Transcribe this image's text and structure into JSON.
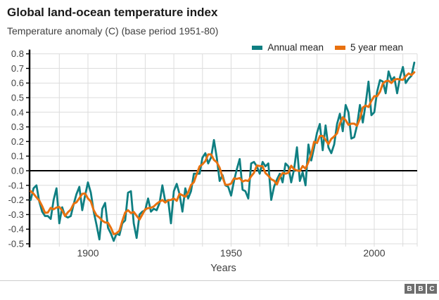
{
  "header": {
    "title": "Global land-ocean temperature index",
    "subtitle": "Temperature anomaly (C) (base period 1951-80)"
  },
  "legend": {
    "items": [
      {
        "label": "Annual mean",
        "color": "#0F7F82"
      },
      {
        "label": "5 year mean",
        "color": "#E8710F"
      }
    ]
  },
  "chart_data": {
    "type": "line",
    "title": "Global land-ocean temperature index",
    "subtitle": "Temperature anomaly (C) (base period 1951-80)",
    "xlabel": "Years",
    "ylabel": "Temperature anomaly (C)",
    "xlim": [
      1879.6,
      2015
    ],
    "ylim": [
      -0.5,
      0.8
    ],
    "grid": true,
    "legend_position": "top-right",
    "yticks": [
      "0.8",
      "0.7",
      "0.6",
      "0.5",
      "0.4",
      "0.3",
      "0.2",
      "0.1",
      "0.0",
      "-0.1",
      "-0.2",
      "-0.3",
      "-0.4",
      "-0.5"
    ],
    "xticks": [
      "1900",
      "1950",
      "2000"
    ],
    "x_start_year": 1880,
    "x_end_year": 2014,
    "series": [
      {
        "name": "Annual mean",
        "color": "#0F7F82",
        "values": [
          -0.2,
          -0.12,
          -0.1,
          -0.21,
          -0.28,
          -0.31,
          -0.31,
          -0.33,
          -0.2,
          -0.12,
          -0.36,
          -0.25,
          -0.31,
          -0.32,
          -0.31,
          -0.23,
          -0.16,
          -0.11,
          -0.27,
          -0.17,
          -0.08,
          -0.15,
          -0.28,
          -0.37,
          -0.47,
          -0.26,
          -0.22,
          -0.39,
          -0.43,
          -0.48,
          -0.43,
          -0.44,
          -0.36,
          -0.34,
          -0.15,
          -0.14,
          -0.36,
          -0.46,
          -0.3,
          -0.28,
          -0.27,
          -0.19,
          -0.28,
          -0.26,
          -0.27,
          -0.22,
          -0.1,
          -0.21,
          -0.2,
          -0.36,
          -0.14,
          -0.09,
          -0.16,
          -0.28,
          -0.12,
          -0.19,
          -0.14,
          -0.02,
          -0.02,
          -0.02,
          0.09,
          0.12,
          0.05,
          0.09,
          0.21,
          0.09,
          -0.07,
          -0.03,
          -0.1,
          -0.11,
          -0.17,
          -0.07,
          0.01,
          0.08,
          -0.13,
          -0.14,
          -0.19,
          0.05,
          0.06,
          0.03,
          -0.02,
          0.06,
          0.03,
          0.05,
          -0.2,
          -0.11,
          -0.06,
          -0.02,
          -0.08,
          0.05,
          0.03,
          -0.08,
          0.01,
          0.16,
          -0.07,
          -0.01,
          -0.1,
          0.18,
          0.07,
          0.16,
          0.26,
          0.32,
          0.14,
          0.31,
          0.16,
          0.12,
          0.18,
          0.32,
          0.39,
          0.27,
          0.45,
          0.4,
          0.22,
          0.23,
          0.31,
          0.45,
          0.33,
          0.46,
          0.61,
          0.38,
          0.4,
          0.54,
          0.62,
          0.61,
          0.53,
          0.68,
          0.62,
          0.64,
          0.53,
          0.64,
          0.71,
          0.6,
          0.63,
          0.65,
          0.74
        ]
      },
      {
        "name": "5 year mean",
        "color": "#E8710F",
        "derived": "5-year centered running mean of the Annual mean series"
      }
    ]
  },
  "footer": {
    "logo_letters": [
      "B",
      "B",
      "C"
    ]
  }
}
